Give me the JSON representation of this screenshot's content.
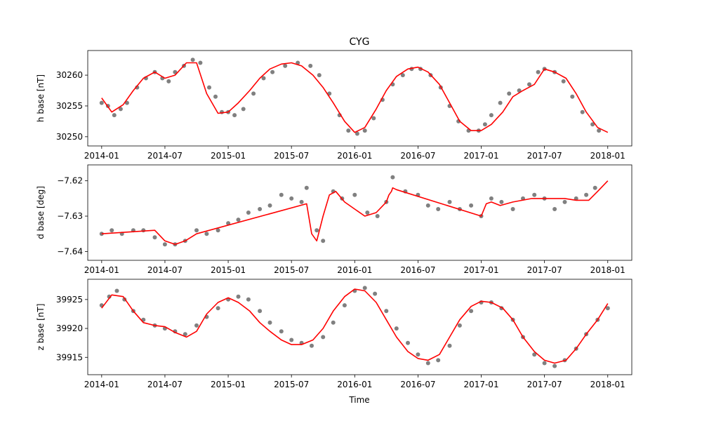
{
  "chart_data": {
    "type": "scatter",
    "title": "CYG",
    "xlabel": "Time",
    "x_tick_labels": [
      "2014-01",
      "2014-07",
      "2015-01",
      "2015-07",
      "2016-01",
      "2016-07",
      "2017-01",
      "2017-07",
      "2018-01"
    ],
    "point_color": "#808080",
    "line_color": "#ff0000",
    "subplots": [
      {
        "ylabel": "h base [nT]",
        "ylim": [
          30248.5,
          30264.0
        ],
        "y_ticks": [
          30250,
          30255,
          30260
        ],
        "y_tick_labels": [
          "30250",
          "30255",
          "30260"
        ],
        "series": [
          {
            "type": "scatter",
            "x": [
              2014.0,
              2014.05,
              2014.1,
              2014.15,
              2014.2,
              2014.28,
              2014.35,
              2014.42,
              2014.48,
              2014.53,
              2014.58,
              2014.65,
              2014.72,
              2014.78,
              2014.85,
              2014.9,
              2014.95,
              2015.0,
              2015.05,
              2015.12,
              2015.2,
              2015.28,
              2015.35,
              2015.45,
              2015.55,
              2015.65,
              2015.72,
              2015.8,
              2015.88,
              2015.95,
              2016.02,
              2016.08,
              2016.15,
              2016.22,
              2016.3,
              2016.38,
              2016.45,
              2016.52,
              2016.6,
              2016.68,
              2016.75,
              2016.82,
              2016.9,
              2016.98,
              2017.03,
              2017.08,
              2017.15,
              2017.22,
              2017.3,
              2017.38,
              2017.45,
              2017.5,
              2017.58,
              2017.65,
              2017.72,
              2017.8,
              2017.88,
              2017.93
            ],
            "y": [
              30255.5,
              30255.0,
              30253.5,
              30254.5,
              30255.5,
              30258.0,
              30259.5,
              30260.5,
              30259.5,
              30259.0,
              30260.5,
              30261.5,
              30262.5,
              30262.0,
              30258.0,
              30256.5,
              30254.0,
              30254.0,
              30253.5,
              30254.5,
              30257.0,
              30259.5,
              30260.5,
              30261.5,
              30262.0,
              30261.5,
              30260.0,
              30257.0,
              30253.5,
              30251.0,
              30250.5,
              30251.0,
              30253.0,
              30256.0,
              30258.5,
              30260.0,
              30261.0,
              30261.0,
              30260.0,
              30258.0,
              30255.0,
              30252.5,
              30251.0,
              30251.0,
              30252.0,
              30253.5,
              30255.5,
              30257.0,
              30257.5,
              30258.5,
              30260.5,
              30261.0,
              30260.5,
              30259.0,
              30256.5,
              30254.0,
              30252.0,
              30251.0
            ]
          },
          {
            "type": "line",
            "x": [
              2014.0,
              2014.08,
              2014.17,
              2014.25,
              2014.33,
              2014.42,
              2014.5,
              2014.58,
              2014.67,
              2014.75,
              2014.83,
              2014.92,
              2015.0,
              2015.08,
              2015.17,
              2015.25,
              2015.33,
              2015.42,
              2015.5,
              2015.58,
              2015.67,
              2015.75,
              2015.83,
              2015.92,
              2016.0,
              2016.08,
              2016.17,
              2016.25,
              2016.33,
              2016.42,
              2016.5,
              2016.58,
              2016.67,
              2016.75,
              2016.83,
              2016.92,
              2017.0,
              2017.08,
              2017.17,
              2017.25,
              2017.33,
              2017.42,
              2017.5,
              2017.58,
              2017.67,
              2017.75,
              2017.83,
              2017.92,
              2018.0
            ],
            "y": [
              30256.3,
              30254.0,
              30255.2,
              30257.5,
              30259.5,
              30260.5,
              30259.5,
              30260.0,
              30262.0,
              30262.0,
              30257.0,
              30253.8,
              30254.0,
              30255.5,
              30257.5,
              30259.5,
              30261.0,
              30261.8,
              30262.0,
              30261.5,
              30260.0,
              30258.0,
              30255.5,
              30252.5,
              30250.7,
              30251.5,
              30254.5,
              30257.5,
              30259.8,
              30261.0,
              30261.3,
              30260.5,
              30258.5,
              30255.5,
              30252.5,
              30251.0,
              30251.0,
              30252.0,
              30254.0,
              30256.5,
              30257.5,
              30258.5,
              30261.0,
              30260.5,
              30259.5,
              30257.0,
              30254.0,
              30251.5,
              30250.7
            ]
          }
        ]
      },
      {
        "ylabel": "d base [deg]",
        "ylim": [
          -7.6425,
          -7.6155
        ],
        "y_ticks": [
          -7.64,
          -7.63,
          -7.62
        ],
        "y_tick_labels": [
          "−7.64",
          "−7.63",
          "−7.62"
        ],
        "series": [
          {
            "type": "scatter",
            "x": [
              2014.0,
              2014.08,
              2014.16,
              2014.25,
              2014.33,
              2014.42,
              2014.5,
              2014.58,
              2014.66,
              2014.75,
              2014.83,
              2014.92,
              2015.0,
              2015.08,
              2015.16,
              2015.25,
              2015.33,
              2015.42,
              2015.5,
              2015.58,
              2015.62,
              2015.7,
              2015.75,
              2015.83,
              2015.9,
              2016.0,
              2016.1,
              2016.18,
              2016.25,
              2016.3,
              2016.4,
              2016.5,
              2016.58,
              2016.66,
              2016.75,
              2016.83,
              2016.92,
              2017.0,
              2017.08,
              2017.16,
              2017.25,
              2017.33,
              2017.42,
              2017.5,
              2017.58,
              2017.66,
              2017.75,
              2017.83,
              2017.9
            ],
            "y": [
              -7.635,
              -7.634,
              -7.635,
              -7.634,
              -7.634,
              -7.636,
              -7.638,
              -7.638,
              -7.637,
              -7.634,
              -7.635,
              -7.634,
              -7.632,
              -7.631,
              -7.629,
              -7.628,
              -7.627,
              -7.624,
              -7.625,
              -7.626,
              -7.622,
              -7.634,
              -7.637,
              -7.623,
              -7.625,
              -7.624,
              -7.629,
              -7.63,
              -7.626,
              -7.619,
              -7.623,
              -7.624,
              -7.627,
              -7.628,
              -7.626,
              -7.628,
              -7.627,
              -7.63,
              -7.625,
              -7.626,
              -7.628,
              -7.625,
              -7.624,
              -7.625,
              -7.628,
              -7.626,
              -7.625,
              -7.624,
              -7.622
            ]
          },
          {
            "type": "line",
            "x": [
              2014.0,
              2014.42,
              2014.5,
              2014.58,
              2014.66,
              2014.75,
              2015.62,
              2015.66,
              2015.7,
              2015.75,
              2015.8,
              2015.85,
              2015.92,
              2016.0,
              2016.08,
              2016.17,
              2016.25,
              2016.27,
              2016.29,
              2016.3,
              2016.33,
              2017.0,
              2017.04,
              2017.08,
              2017.15,
              2017.25,
              2017.4,
              2017.5,
              2017.66,
              2017.75,
              2017.85,
              2017.92,
              2018.0
            ],
            "y": [
              -7.635,
              -7.634,
              -7.637,
              -7.638,
              -7.637,
              -7.635,
              -7.6265,
              -7.635,
              -7.637,
              -7.63,
              -7.624,
              -7.623,
              -7.626,
              -7.628,
              -7.63,
              -7.629,
              -7.626,
              -7.624,
              -7.623,
              -7.622,
              -7.6225,
              -7.63,
              -7.6265,
              -7.626,
              -7.627,
              -7.626,
              -7.625,
              -7.625,
              -7.625,
              -7.6255,
              -7.6255,
              -7.623,
              -7.62
            ]
          }
        ]
      },
      {
        "ylabel": "z base [nT]",
        "ylim": [
          39912.0,
          39928.5
        ],
        "y_ticks": [
          39915,
          39920,
          39925
        ],
        "y_tick_labels": [
          "39915",
          "39920",
          "39925"
        ],
        "series": [
          {
            "type": "scatter",
            "x": [
              2014.0,
              2014.06,
              2014.12,
              2014.18,
              2014.25,
              2014.33,
              2014.42,
              2014.5,
              2014.58,
              2014.66,
              2014.75,
              2014.83,
              2014.92,
              2015.0,
              2015.08,
              2015.16,
              2015.25,
              2015.33,
              2015.42,
              2015.5,
              2015.58,
              2015.66,
              2015.75,
              2015.83,
              2015.92,
              2016.0,
              2016.08,
              2016.16,
              2016.25,
              2016.33,
              2016.42,
              2016.5,
              2016.58,
              2016.66,
              2016.75,
              2016.83,
              2016.92,
              2017.0,
              2017.08,
              2017.16,
              2017.25,
              2017.33,
              2017.42,
              2017.5,
              2017.58,
              2017.66,
              2017.75,
              2017.83,
              2017.92,
              2018.0
            ],
            "y": [
              39924.0,
              39925.5,
              39926.5,
              39925.0,
              39923.0,
              39921.5,
              39920.5,
              39920.0,
              39919.5,
              39919.0,
              39920.5,
              39922.0,
              39923.5,
              39925.0,
              39925.5,
              39925.0,
              39923.0,
              39921.0,
              39919.5,
              39918.0,
              39917.5,
              39917.0,
              39918.5,
              39921.0,
              39924.0,
              39926.5,
              39927.0,
              39926.0,
              39923.0,
              39920.0,
              39917.5,
              39915.5,
              39914.0,
              39914.5,
              39917.0,
              39920.5,
              39923.0,
              39924.5,
              39924.5,
              39923.5,
              39921.5,
              39918.5,
              39915.5,
              39914.0,
              39913.5,
              39914.5,
              39916.5,
              39919.0,
              39921.5,
              39923.5
            ]
          },
          {
            "type": "line",
            "x": [
              2014.0,
              2014.08,
              2014.17,
              2014.25,
              2014.33,
              2014.42,
              2014.5,
              2014.58,
              2014.67,
              2014.75,
              2014.83,
              2014.92,
              2015.0,
              2015.08,
              2015.17,
              2015.25,
              2015.33,
              2015.42,
              2015.5,
              2015.58,
              2015.67,
              2015.75,
              2015.83,
              2015.92,
              2016.0,
              2016.08,
              2016.17,
              2016.25,
              2016.33,
              2016.42,
              2016.5,
              2016.58,
              2016.67,
              2016.75,
              2016.83,
              2016.92,
              2017.0,
              2017.08,
              2017.17,
              2017.25,
              2017.33,
              2017.42,
              2017.5,
              2017.58,
              2017.67,
              2017.75,
              2017.83,
              2017.92,
              2018.0
            ],
            "y": [
              39923.5,
              39925.8,
              39925.5,
              39923.0,
              39921.0,
              39920.5,
              39920.3,
              39919.3,
              39918.5,
              39919.5,
              39922.5,
              39924.5,
              39925.3,
              39924.5,
              39923.0,
              39921.0,
              39919.5,
              39918.0,
              39917.2,
              39917.2,
              39918.0,
              39920.0,
              39923.0,
              39925.5,
              39926.8,
              39926.5,
              39924.5,
              39921.5,
              39918.5,
              39916.0,
              39914.8,
              39914.5,
              39915.5,
              39918.5,
              39921.5,
              39923.8,
              39924.7,
              39924.5,
              39923.5,
              39921.5,
              39918.5,
              39916.0,
              39914.5,
              39914.0,
              39914.5,
              39916.5,
              39919.0,
              39921.5,
              39924.3
            ]
          }
        ]
      }
    ]
  }
}
